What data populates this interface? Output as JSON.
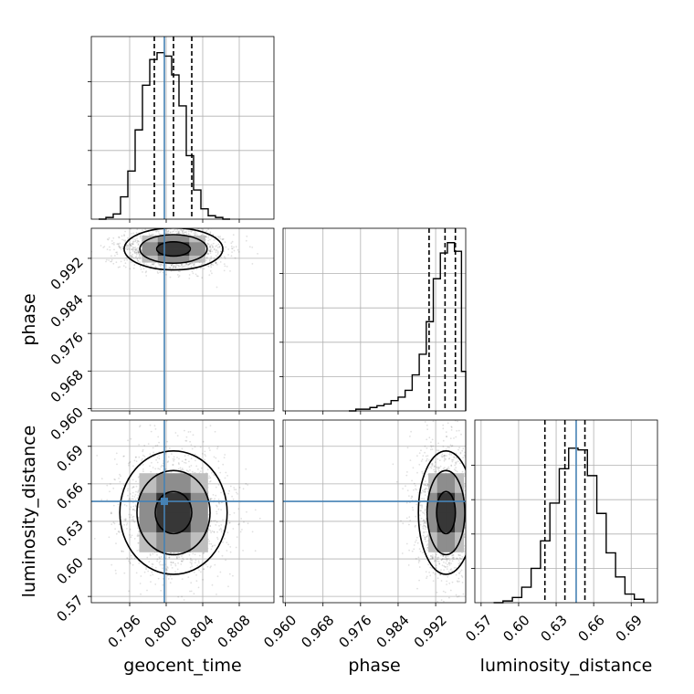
{
  "chart_data": {
    "type": "corner",
    "parameters": [
      {
        "name": "geocent_time",
        "range": [
          0.7918,
          0.8118
        ],
        "ticks": [
          "0.796",
          "0.800",
          "0.804",
          "0.808"
        ],
        "tick_values": [
          0.796,
          0.8,
          0.804,
          0.808
        ],
        "truth": 0.7998,
        "quantiles": [
          0.7987,
          0.8008,
          0.8028
        ]
      },
      {
        "name": "phase",
        "range": [
          0.9595,
          0.9984
        ],
        "ticks": [
          "0.960",
          "0.968",
          "0.976",
          "0.984",
          "0.992"
        ],
        "tick_values": [
          0.96,
          0.968,
          0.976,
          0.984,
          0.992
        ],
        "quantiles": [
          0.9906,
          0.994,
          0.9962
        ]
      },
      {
        "name": "luminosity_distance",
        "range": [
          0.565,
          0.711
        ],
        "ticks": [
          "0.57",
          "0.60",
          "0.63",
          "0.66",
          "0.69"
        ],
        "tick_values": [
          0.57,
          0.6,
          0.63,
          0.66,
          0.69
        ],
        "truth": 0.646,
        "quantiles": [
          0.621,
          0.637,
          0.653
        ]
      }
    ],
    "histograms": [
      {
        "param": "geocent_time",
        "bin_edges": [
          0.7926,
          0.7934,
          0.7942,
          0.795,
          0.7958,
          0.7966,
          0.7974,
          0.7982,
          0.799,
          0.7998,
          0.8006,
          0.8014,
          0.8022,
          0.803,
          0.8038,
          0.8046,
          0.8054,
          0.8062,
          0.807
        ],
        "counts": [
          0.0,
          0.01,
          0.03,
          0.13,
          0.28,
          0.52,
          0.78,
          0.93,
          0.97,
          0.95,
          0.84,
          0.66,
          0.37,
          0.17,
          0.06,
          0.02,
          0.01,
          0.0
        ]
      },
      {
        "param": "phase",
        "bin_edges": [
          0.9735,
          0.975,
          0.9765,
          0.978,
          0.9795,
          0.981,
          0.9825,
          0.984,
          0.9855,
          0.987,
          0.9885,
          0.99,
          0.9915,
          0.993,
          0.9945,
          0.996,
          0.9975,
          0.9984
        ],
        "counts": [
          0.0,
          0.01,
          0.01,
          0.02,
          0.03,
          0.04,
          0.06,
          0.08,
          0.12,
          0.21,
          0.33,
          0.52,
          0.77,
          0.92,
          0.98,
          0.93,
          0.23
        ]
      },
      {
        "param": "luminosity_distance",
        "bin_edges": [
          0.58,
          0.5875,
          0.595,
          0.6025,
          0.61,
          0.6175,
          0.625,
          0.6325,
          0.64,
          0.6475,
          0.655,
          0.6625,
          0.67,
          0.6775,
          0.685,
          0.6925,
          0.7
        ],
        "counts": [
          0.0,
          0.01,
          0.03,
          0.09,
          0.2,
          0.36,
          0.58,
          0.78,
          0.9,
          0.89,
          0.74,
          0.52,
          0.29,
          0.15,
          0.05,
          0.02
        ]
      }
    ],
    "pairs": [
      {
        "x": "geocent_time",
        "y": "phase",
        "center": [
          0.8008,
          0.994
        ],
        "spread": [
          0.0023,
          0.0019
        ]
      },
      {
        "x": "geocent_time",
        "y": "luminosity_distance",
        "center": [
          0.8008,
          0.637
        ],
        "spread": [
          0.0025,
          0.021
        ]
      },
      {
        "x": "phase",
        "y": "luminosity_distance",
        "center": [
          0.9942,
          0.637
        ],
        "spread": [
          0.0025,
          0.021
        ]
      }
    ],
    "truth_color": "#4682b4",
    "grid": true
  }
}
